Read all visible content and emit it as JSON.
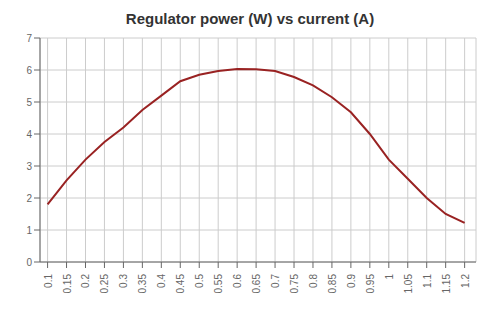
{
  "chart_data": {
    "type": "line",
    "title": "Regulator power (W) vs current (A)",
    "x": [
      0.1,
      0.15,
      0.2,
      0.25,
      0.3,
      0.35,
      0.4,
      0.45,
      0.5,
      0.55,
      0.6,
      0.65,
      0.7,
      0.75,
      0.8,
      0.85,
      0.9,
      0.95,
      1.0,
      1.05,
      1.1,
      1.15,
      1.2
    ],
    "values": [
      1.8,
      2.55,
      3.2,
      3.75,
      4.2,
      4.75,
      5.2,
      5.65,
      5.85,
      5.97,
      6.03,
      6.02,
      5.97,
      5.78,
      5.52,
      5.15,
      4.68,
      4.0,
      3.2,
      2.6,
      2.0,
      1.5,
      1.22
    ],
    "color": "#992222",
    "xlim": [
      0.08,
      1.23
    ],
    "xticks": [
      0.1,
      0.15,
      0.2,
      0.25,
      0.3,
      0.35,
      0.4,
      0.45,
      0.5,
      0.55,
      0.6,
      0.65,
      0.7,
      0.75,
      0.8,
      0.85,
      0.9,
      0.95,
      1,
      1.05,
      1.1,
      1.15,
      1.2
    ],
    "ylim": [
      0,
      7
    ],
    "yticks": [
      0,
      1,
      2,
      3,
      4,
      5,
      6,
      7
    ],
    "grid": true
  }
}
